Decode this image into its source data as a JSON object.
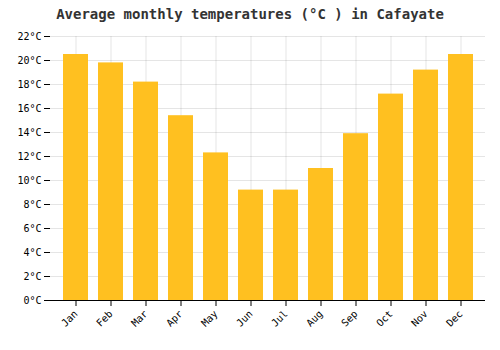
{
  "chart_data": {
    "type": "bar",
    "title": "Average monthly temperatures (°C ) in Cafayate",
    "categories": [
      "Jan",
      "Feb",
      "Mar",
      "Apr",
      "May",
      "Jun",
      "Jul",
      "Aug",
      "Sep",
      "Oct",
      "Nov",
      "Dec"
    ],
    "values": [
      20.5,
      19.8,
      18.2,
      15.4,
      12.3,
      9.2,
      9.2,
      11.0,
      13.9,
      17.2,
      19.2,
      20.5
    ],
    "color": "#FFC020",
    "ylim": [
      0,
      22
    ],
    "yticks": [
      {
        "value": 0,
        "label": "0°C"
      },
      {
        "value": 2,
        "label": "2°C"
      },
      {
        "value": 4,
        "label": "4°C"
      },
      {
        "value": 6,
        "label": "6°C"
      },
      {
        "value": 8,
        "label": "8°C"
      },
      {
        "value": 10,
        "label": "10°C"
      },
      {
        "value": 12,
        "label": "12°C"
      },
      {
        "value": 14,
        "label": "14°C"
      },
      {
        "value": 16,
        "label": "16°C"
      },
      {
        "value": 18,
        "label": "18°C"
      },
      {
        "value": 20,
        "label": "20°C"
      },
      {
        "value": 22,
        "label": "22°C"
      }
    ],
    "grid": true
  }
}
